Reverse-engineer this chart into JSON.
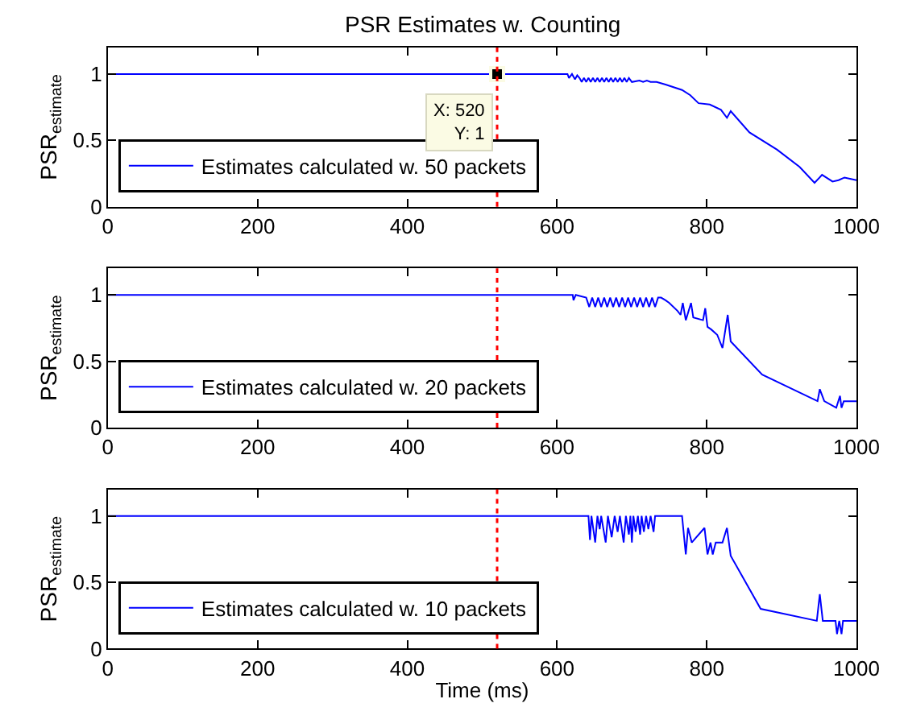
{
  "chart_data": [
    {
      "type": "line",
      "title": "PSR Estimates w. Counting",
      "ylabel": "PSR$_{estimate}$",
      "xlim": [
        0,
        1000
      ],
      "ylim": [
        0,
        1.2
      ],
      "xticks": [
        0,
        200,
        400,
        600,
        800,
        1000
      ],
      "yticks": [
        0,
        0.5,
        1
      ],
      "legend": "bottom left",
      "annotations": [
        {
          "text": "X: 520\nY: 1",
          "x": 520,
          "y": 1
        }
      ],
      "ref_lines": [
        {
          "axis": "x",
          "value": 520,
          "color": "#ff0000",
          "line_style": "dotted"
        }
      ],
      "series": [
        {
          "name": "Estimates calculated w. 50 packets",
          "color": "#0000ff",
          "x": [
            0,
            614,
            616,
            620,
            624,
            627,
            630,
            633,
            636,
            639,
            642,
            645,
            648,
            651,
            654,
            657,
            660,
            663,
            666,
            669,
            672,
            675,
            678,
            681,
            684,
            687,
            690,
            693,
            696,
            700,
            710,
            715,
            720,
            725,
            733,
            745,
            767,
            778,
            789,
            804,
            819,
            827,
            832,
            857,
            894,
            924,
            944,
            954,
            968,
            976,
            984,
            1000
          ],
          "values": [
            1,
            1,
            0.97,
            1,
            0.96,
            0.99,
            0.97,
            0.94,
            0.97,
            0.94,
            0.97,
            0.94,
            0.97,
            0.94,
            0.97,
            0.94,
            0.97,
            0.94,
            0.97,
            0.94,
            0.97,
            0.94,
            0.97,
            0.94,
            0.97,
            0.94,
            0.97,
            0.94,
            0.97,
            0.94,
            0.95,
            0.94,
            0.95,
            0.94,
            0.94,
            0.92,
            0.88,
            0.84,
            0.78,
            0.77,
            0.73,
            0.67,
            0.72,
            0.56,
            0.43,
            0.3,
            0.18,
            0.24,
            0.19,
            0.2,
            0.22,
            0.2
          ]
        }
      ]
    },
    {
      "type": "line",
      "ylabel": "PSR$_{estimate}$",
      "xlim": [
        0,
        1000
      ],
      "ylim": [
        0,
        1.2
      ],
      "xticks": [
        0,
        200,
        400,
        600,
        800,
        1000
      ],
      "yticks": [
        0,
        0.5,
        1
      ],
      "legend": "bottom left",
      "ref_lines": [
        {
          "axis": "x",
          "value": 520,
          "color": "#ff0000",
          "line_style": "dotted"
        }
      ],
      "series": [
        {
          "name": "Estimates calculated w. 20 packets",
          "color": "#0000ff",
          "x": [
            0,
            621,
            622,
            625,
            639,
            643,
            647,
            651,
            655,
            659,
            663,
            667,
            671,
            675,
            679,
            683,
            687,
            691,
            695,
            699,
            703,
            707,
            711,
            715,
            719,
            723,
            727,
            731,
            735,
            739,
            745,
            750,
            761,
            765,
            768,
            772,
            779,
            782,
            795,
            798,
            801,
            806,
            814,
            821,
            828,
            832,
            874,
            948,
            951,
            957,
            973,
            978,
            980,
            983,
            1000
          ],
          "values": [
            1,
            1,
            0.96,
            1,
            0.98,
            0.91,
            0.98,
            0.91,
            0.98,
            0.91,
            0.98,
            0.91,
            0.98,
            0.91,
            0.98,
            0.91,
            0.98,
            0.91,
            0.98,
            0.91,
            0.98,
            0.91,
            0.98,
            0.91,
            0.98,
            0.91,
            0.98,
            0.91,
            0.98,
            0.98,
            0.96,
            0.94,
            0.88,
            0.85,
            0.94,
            0.81,
            0.94,
            0.83,
            0.81,
            0.9,
            0.76,
            0.74,
            0.7,
            0.6,
            0.85,
            0.65,
            0.4,
            0.2,
            0.29,
            0.2,
            0.15,
            0.24,
            0.15,
            0.2,
            0.2
          ]
        }
      ]
    },
    {
      "type": "line",
      "xlabel": "Time (ms)",
      "ylabel": "PSR$_{estimate}$",
      "xlim": [
        0,
        1000
      ],
      "ylim": [
        0,
        1.2
      ],
      "xticks": [
        0,
        200,
        400,
        600,
        800,
        1000
      ],
      "yticks": [
        0,
        0.5,
        1
      ],
      "legend": "bottom left",
      "ref_lines": [
        {
          "axis": "x",
          "value": 520,
          "color": "#ff0000",
          "line_style": "dotted"
        }
      ],
      "series": [
        {
          "name": "Estimates calculated w. 10 packets",
          "color": "#0000ff",
          "x": [
            0,
            642,
            644,
            646,
            651,
            654,
            657,
            659,
            665,
            668,
            673,
            677,
            681,
            684,
            689,
            692,
            696,
            698,
            700,
            702,
            705,
            708,
            711,
            713,
            716,
            719,
            722,
            725,
            729,
            731,
            767,
            772,
            775,
            780,
            797,
            801,
            805,
            808,
            812,
            821,
            827,
            832,
            872,
            947,
            951,
            955,
            972,
            974,
            977,
            980,
            982,
            1000
          ],
          "values": [
            1,
            1,
            0.82,
            1,
            0.8,
            1,
            0.9,
            1,
            0.8,
            1,
            0.84,
            1,
            0.88,
            1,
            0.8,
            1,
            0.86,
            1,
            0.8,
            1,
            0.88,
            1,
            0.86,
            1,
            0.88,
            1,
            0.9,
            1,
            0.88,
            1,
            1,
            0.71,
            0.91,
            0.8,
            0.91,
            0.71,
            0.8,
            0.71,
            0.8,
            0.8,
            0.91,
            0.7,
            0.3,
            0.21,
            0.41,
            0.21,
            0.21,
            0.11,
            0.21,
            0.11,
            0.21,
            0.21
          ]
        }
      ]
    }
  ]
}
